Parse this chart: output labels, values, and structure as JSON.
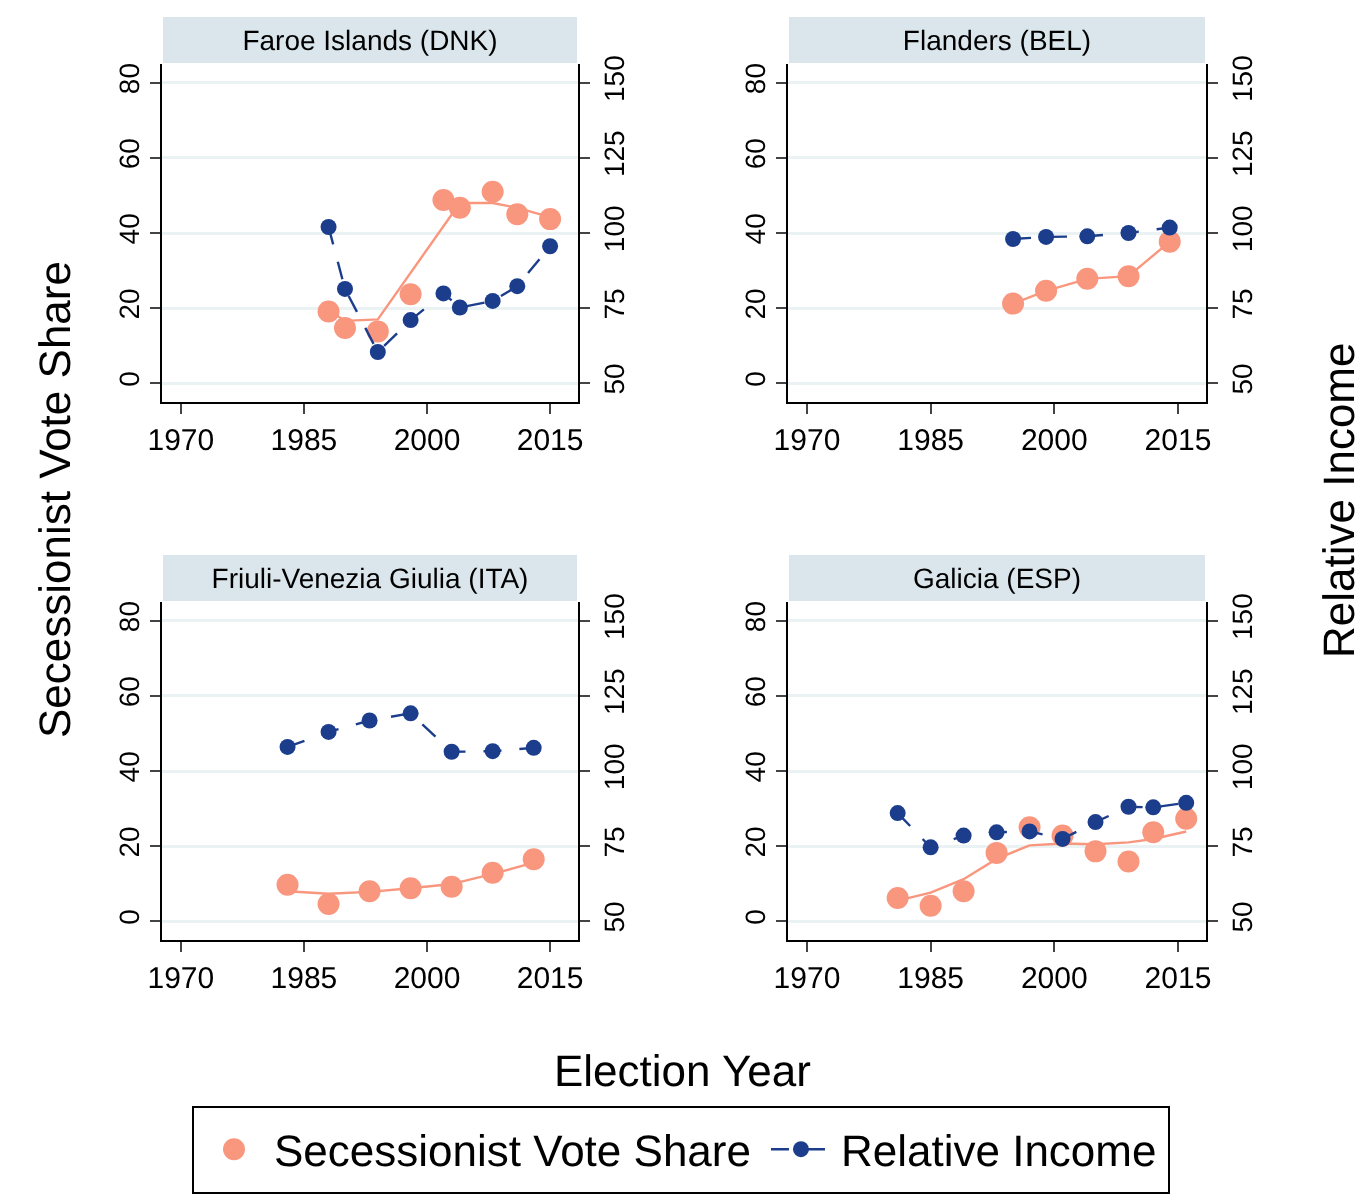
{
  "chart_data": [
    {
      "type": "scatter",
      "title": "Faroe Islands (DNK)",
      "xlabel": "Election Year",
      "ylabel": "Secessionist Vote Share",
      "y2label": "Relative Income",
      "legend": "bottom",
      "grid": "y",
      "xlim": [
        1967.7,
        2018.4
      ],
      "xticks": [
        1970,
        1985,
        2000,
        2015
      ],
      "ylim": [
        -5,
        85
      ],
      "yticks": [
        0,
        20,
        40,
        60,
        80
      ],
      "y2lim": [
        43.75,
        156.25
      ],
      "y2ticks": [
        50,
        75,
        100,
        125,
        150
      ],
      "series": [
        {
          "name": "Secessionist Vote Share",
          "marker": "circle",
          "color": "#f9967e",
          "x": [
            1988,
            1990,
            1994,
            1998,
            2002,
            2004,
            2008,
            2011,
            2015
          ],
          "values": [
            19.1,
            14.7,
            13.8,
            23.7,
            48.8,
            46.7,
            51,
            45,
            43.7
          ]
        },
        {
          "type": "line",
          "marker": "none",
          "line_style": "solid",
          "color": "#f9967e",
          "x": [
            1988,
            1990,
            1994,
            2004,
            2008,
            2011,
            2015
          ],
          "values": [
            19.5,
            16.6,
            17,
            48,
            48,
            46.7,
            44.2
          ]
        },
        {
          "name": "Relative Income",
          "type": "line",
          "axis": "y2",
          "marker": "circle",
          "line_style": "dashed",
          "color": "#1b3d8c",
          "x": [
            1988,
            1990,
            1994,
            1998,
            2002,
            2004,
            2008,
            2011,
            2015
          ],
          "values": [
            102,
            81.4,
            60.4,
            71,
            79.9,
            75.2,
            77.4,
            82.3,
            95.6
          ]
        }
      ]
    },
    {
      "type": "scatter",
      "title": "Flanders (BEL)",
      "grid": "y",
      "xlim": [
        1967.7,
        2018.4
      ],
      "xticks": [
        1970,
        1985,
        2000,
        2015
      ],
      "ylim": [
        -5,
        85
      ],
      "yticks": [
        0,
        20,
        40,
        60,
        80
      ],
      "y2lim": [
        43.75,
        156.25
      ],
      "y2ticks": [
        50,
        75,
        100,
        125,
        150
      ],
      "series": [
        {
          "marker": "circle",
          "color": "#f9967e",
          "x": [
            1995,
            1999,
            2004,
            2009,
            2014
          ],
          "values": [
            21.2,
            24.6,
            27.8,
            28.5,
            37.7
          ]
        },
        {
          "type": "line",
          "marker": "none",
          "line_style": "solid",
          "color": "#f9967e",
          "x": [
            1995,
            1999,
            2004,
            2009,
            2014
          ],
          "values": [
            21.2,
            24.6,
            27.8,
            28.5,
            37.7
          ]
        },
        {
          "type": "line",
          "axis": "y2",
          "marker": "circle",
          "line_style": "dashed",
          "color": "#1b3d8c",
          "x": [
            1995,
            1999,
            2004,
            2009,
            2014
          ],
          "values": [
            98,
            98.7,
            98.9,
            100,
            101.8
          ]
        }
      ]
    },
    {
      "type": "scatter",
      "title": "Friuli-Venezia Giulia (ITA)",
      "grid": "y",
      "xlim": [
        1967.7,
        2018.4
      ],
      "xticks": [
        1970,
        1985,
        2000,
        2015
      ],
      "ylim": [
        -5,
        85
      ],
      "yticks": [
        0,
        20,
        40,
        60,
        80
      ],
      "y2lim": [
        43.75,
        156.25
      ],
      "y2ticks": [
        50,
        75,
        100,
        125,
        150
      ],
      "series": [
        {
          "marker": "circle",
          "color": "#f9967e",
          "x": [
            1983,
            1988,
            1993,
            1998,
            2003,
            2008,
            2013
          ],
          "values": [
            9.7,
            4.6,
            8,
            8.8,
            9.2,
            12.9,
            16.5
          ]
        },
        {
          "type": "line",
          "marker": "none",
          "line_style": "solid",
          "color": "#f9967e",
          "x": [
            1983,
            1988,
            1993,
            1998,
            2003,
            2008,
            2013
          ],
          "values": [
            8,
            7.3,
            7.8,
            8.8,
            9.9,
            12.6,
            15.6
          ]
        },
        {
          "type": "line",
          "axis": "y2",
          "marker": "circle",
          "line_style": "dashed",
          "color": "#1b3d8c",
          "x": [
            1983,
            1988,
            1993,
            1998,
            2003,
            2008,
            2013
          ],
          "values": [
            108,
            113,
            116.8,
            119.2,
            106.4,
            106.6,
            107.7
          ]
        }
      ]
    },
    {
      "type": "scatter",
      "title": "Galicia (ESP)",
      "grid": "y",
      "xlim": [
        1967.7,
        2018.4
      ],
      "xticks": [
        1970,
        1985,
        2000,
        2015
      ],
      "ylim": [
        -5,
        85
      ],
      "yticks": [
        0,
        20,
        40,
        60,
        80
      ],
      "y2lim": [
        43.75,
        156.25
      ],
      "y2ticks": [
        50,
        75,
        100,
        125,
        150
      ],
      "series": [
        {
          "marker": "circle",
          "color": "#f9967e",
          "x": [
            1981,
            1985,
            1989,
            1993,
            1997,
            2001,
            2005,
            2009,
            2012,
            2016
          ],
          "values": [
            6.2,
            4.1,
            8,
            18.2,
            25,
            22.8,
            18.6,
            15.9,
            23.7,
            27.3
          ]
        },
        {
          "type": "line",
          "marker": "none",
          "line_style": "solid",
          "color": "#f9967e",
          "x": [
            1981,
            1985,
            1989,
            1993,
            1997,
            2001,
            2005,
            2009,
            2012,
            2016
          ],
          "values": [
            5.5,
            7.6,
            11.2,
            16.6,
            20.2,
            20.7,
            20.5,
            21,
            21.9,
            23.9
          ]
        },
        {
          "type": "line",
          "axis": "y2",
          "marker": "circle",
          "line_style": "dashed",
          "color": "#1b3d8c",
          "x": [
            1981,
            1985,
            1989,
            1993,
            1997,
            2001,
            2005,
            2009,
            2012,
            2016
          ],
          "values": [
            86,
            74.6,
            78.5,
            79.6,
            79.9,
            77.4,
            83,
            88.1,
            87.9,
            89.4
          ]
        }
      ]
    }
  ]
}
